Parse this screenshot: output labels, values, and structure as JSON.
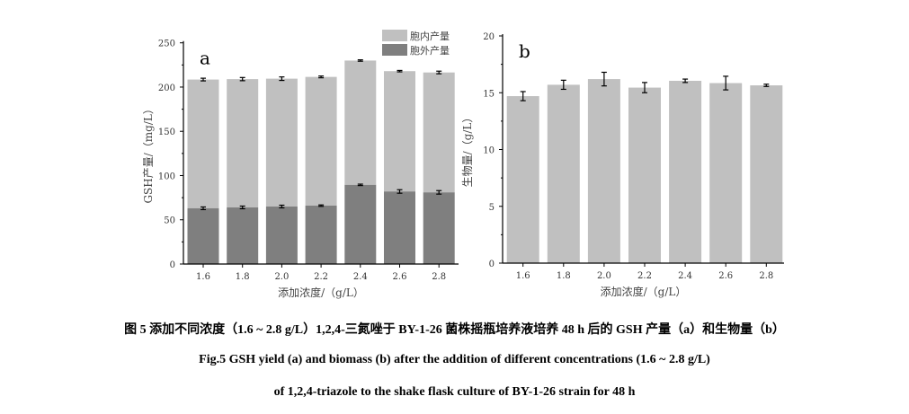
{
  "chart_data": [
    {
      "type": "bar",
      "stacked": true,
      "panel_label": "a",
      "categories": [
        "1.6",
        "1.8",
        "2.0",
        "2.2",
        "2.4",
        "2.6",
        "2.8"
      ],
      "series": [
        {
          "name": "胞外产量",
          "values": [
            63,
            64,
            65,
            66,
            89.5,
            82,
            81
          ],
          "errors": [
            1.5,
            1.5,
            1.5,
            0.8,
            0.8,
            2,
            2
          ],
          "color": "#7f7f7f"
        },
        {
          "name": "胞内产量",
          "totals": [
            208.5,
            209,
            209.5,
            211.5,
            230,
            218,
            216.5
          ],
          "errors": [
            1.5,
            1.8,
            2,
            1,
            0.8,
            0.8,
            1.5
          ],
          "color": "#c0c0c0"
        }
      ],
      "xlabel": "添加浓度/（g/L）",
      "ylabel": "GSH产量/（mg/L）",
      "ylim": [
        0,
        250
      ],
      "yticks": [
        "0",
        "50",
        "100",
        "150",
        "200",
        "250"
      ],
      "legend": "top-right"
    },
    {
      "type": "bar",
      "panel_label": "b",
      "categories": [
        "1.6",
        "1.8",
        "2.0",
        "2.2",
        "2.4",
        "2.6",
        "2.8"
      ],
      "values": [
        14.7,
        15.7,
        16.2,
        15.45,
        16.05,
        15.85,
        15.65
      ],
      "errors": [
        0.4,
        0.4,
        0.6,
        0.45,
        0.15,
        0.6,
        0.1
      ],
      "color": "#c0c0c0",
      "xlabel": "添加浓度/（g/L）",
      "ylabel": "生物量/（g/L）",
      "ylim": [
        0,
        20
      ],
      "yticks": [
        "0",
        "5",
        "10",
        "15",
        "20"
      ]
    }
  ],
  "caption": {
    "cn": "图 5  添加不同浓度（1.6 ~ 2.8 g/L）1,2,4-三氮唑于 BY-1-26 菌株摇瓶培养液培养 48 h 后的 GSH 产量（a）和生物量（b）",
    "en1": "Fig.5 GSH yield (a) and biomass (b) after the addition of different concentrations (1.6 ~ 2.8 g/L)",
    "en2": "of 1,2,4-triazole to the shake flask culture of BY-1-26 strain for 48 h"
  }
}
